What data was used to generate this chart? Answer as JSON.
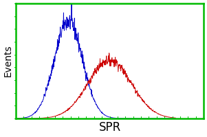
{
  "title": "",
  "xlabel": "SPR",
  "ylabel": "Events",
  "xlabel_fontsize": 12,
  "ylabel_fontsize": 10,
  "background_color": "#ffffff",
  "border_color": "#00bb00",
  "blue_color": "#0000cc",
  "red_color": "#cc0000",
  "blue_mean": 0.28,
  "blue_std": 0.075,
  "blue_peak": 1.0,
  "red_mean": 0.5,
  "red_std": 0.115,
  "red_peak": 0.6,
  "x_range": [
    0.0,
    1.0
  ],
  "y_range": [
    0.0,
    1.18
  ],
  "noise_seed_blue": 42,
  "noise_seed_red": 7,
  "n_points": 600,
  "noise_scale_blue": 0.055,
  "noise_scale_red": 0.045
}
